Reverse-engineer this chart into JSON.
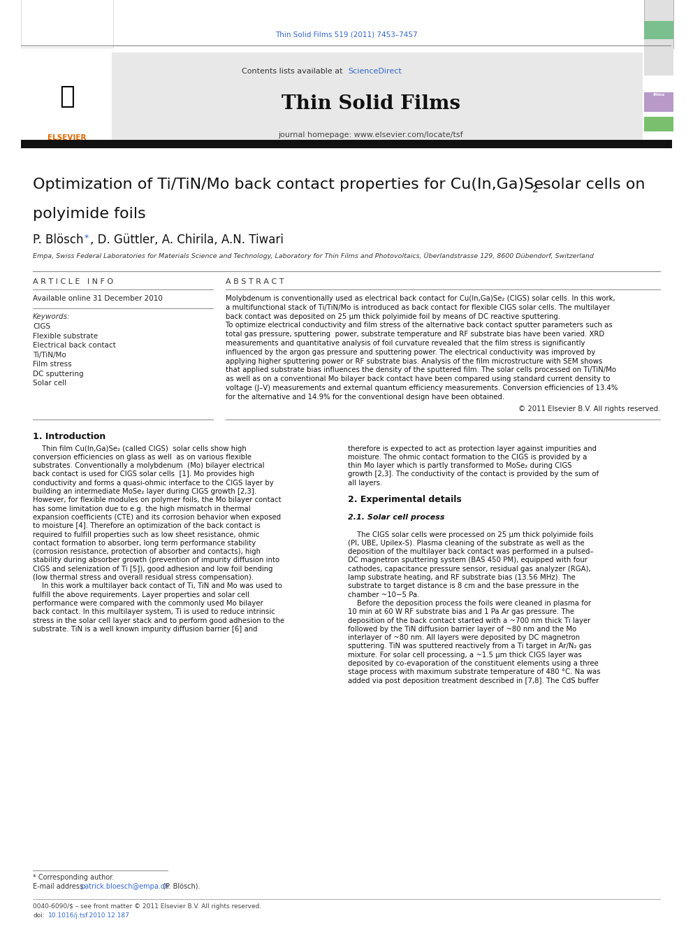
{
  "page_width": 9.92,
  "page_height": 13.23,
  "background_color": "#ffffff",
  "journal_citation": "Thin Solid Films 519 (2011) 7453–7457",
  "journal_citation_color": "#3366cc",
  "header_bg_color": "#e8e8e8",
  "header_text1": "Contents lists available at ",
  "header_sciencedirect": "ScienceDirect",
  "header_sciencedirect_color": "#3366cc",
  "journal_title": "Thin Solid Films",
  "journal_homepage": "journal homepage: www.elsevier.com/locate/tsf",
  "thick_bar_color": "#222222",
  "article_info_header": "A R T I C L E   I N F O",
  "abstract_header": "A B S T R A C T",
  "available_online": "Available online 31 December 2010",
  "keywords_label": "Keywords:",
  "keywords": [
    "CIGS",
    "Flexible substrate",
    "Electrical back contact",
    "Ti/TiN/Mo",
    "Film stress",
    "DC sputtering",
    "Solar cell"
  ],
  "copyright": "© 2011 Elsevier B.V. All rights reserved.",
  "section1_title": "1. Introduction",
  "footnote_star": "* Corresponding author.",
  "footnote_email_label": "E-mail address: ",
  "footnote_email": "patrick.bloesch@empa.ch",
  "footnote_email_color": "#3366cc",
  "footnote_email_end": " (P. Blösch).",
  "footer_line1": "0040-6090/$ – see front matter © 2011 Elsevier B.V. All rights reserved.",
  "footer_doi_color": "#3366cc",
  "abstract_lines": [
    "Molybdenum is conventionally used as electrical back contact for Cu(In,Ga)Se₂ (CIGS) solar cells. In this work,",
    "a multifunctional stack of Ti/TiN/Mo is introduced as back contact for flexible CIGS solar cells. The multilayer",
    "back contact was deposited on 25 μm thick polyimide foil by means of DC reactive sputtering.",
    "To optimize electrical conductivity and film stress of the alternative back contact sputter parameters such as",
    "total gas pressure, sputtering  power, substrate temperature and RF substrate bias have been varied. XRD",
    "measurements and quantitative analysis of foil curvature revealed that the film stress is significantly",
    "influenced by the argon gas pressure and sputtering power. The electrical conductivity was improved by",
    "applying higher sputtering power or RF substrate bias. Analysis of the film microstructure with SEM shows",
    "that applied substrate bias influences the density of the sputtered film. The solar cells processed on Ti/TiN/Mo",
    "as well as on a conventional Mo bilayer back contact have been compared using standard current density to",
    "voltage (J–V) measurements and external quantum efficiency measurements. Conversion efficiencies of 13.4%",
    "for the alternative and 14.9% for the conventional design have been obtained."
  ],
  "intro_col1_lines": [
    "    Thin film Cu(In,Ga)Se₂ (called CIGS)  solar cells show high",
    "conversion efficiencies on glass as well  as on various flexible",
    "substrates. Conventionally a molybdenum  (Mo) bilayer electrical",
    "back contact is used for CIGS solar cells  [1]. Mo provides high",
    "conductivity and forms a quasi-ohmic interface to the CIGS layer by",
    "building an intermediate MoSe₂ layer during CIGS growth [2,3].",
    "However, for flexible modules on polymer foils, the Mo bilayer contact",
    "has some limitation due to e.g. the high mismatch in thermal",
    "expansion coefficients (CTE) and its corrosion behavior when exposed",
    "to moisture [4]. Therefore an optimization of the back contact is",
    "required to fulfill properties such as low sheet resistance, ohmic",
    "contact formation to absorber, long term performance stability",
    "(corrosion resistance, protection of absorber and contacts), high",
    "stability during absorber growth (prevention of impurity diffusion into",
    "CIGS and selenization of Ti [5]), good adhesion and low foil bending",
    "(low thermal stress and overall residual stress compensation).",
    "    In this work a multilayer back contact of Ti, TiN and Mo was used to",
    "fulfill the above requirements. Layer properties and solar cell",
    "performance were compared with the commonly used Mo bilayer",
    "back contact. In this multilayer system, Ti is used to reduce intrinsic",
    "stress in the solar cell layer stack and to perform good adhesion to the",
    "substrate. TiN is a well known impurity diffusion barrier [6] and"
  ],
  "intro_col2_lines": [
    "therefore is expected to act as protection layer against impurities and",
    "moisture. The ohmic contact formation to the CIGS is provided by a",
    "thin Mo layer which is partly transformed to MoSe₂ during CIGS",
    "growth [2,3]. The conductivity of the contact is provided by the sum of",
    "all layers.",
    "",
    "__SECTION__ 2. Experimental details",
    "",
    "__SUBSECTION__ 2.1. Solar cell process",
    "",
    "    The CIGS solar cells were processed on 25 μm thick polyimide foils",
    "(PI, UBE, Upilex-S). Plasma cleaning of the substrate as well as the",
    "deposition of the multilayer back contact was performed in a pulsed–",
    "DC magnetron sputtering system (BAS 450 PM), equipped with four",
    "cathodes, capacitance pressure sensor, residual gas analyzer (RGA),",
    "lamp substrate heating, and RF substrate bias (13.56 MHz). The",
    "substrate to target distance is 8 cm and the base pressure in the",
    "chamber ~10−5 Pa.",
    "    Before the deposition process the foils were cleaned in plasma for",
    "10 min at 60 W RF substrate bias and 1 Pa Ar gas pressure. The",
    "deposition of the back contact started with a ~700 nm thick Ti layer",
    "followed by the TiN diffusion barrier layer of ~80 nm and the Mo",
    "interlayer of ~80 nm. All layers were deposited by DC magnetron",
    "sputtering. TiN was sputtered reactively from a Ti target in Ar/N₂ gas",
    "mixture. For solar cell processing, a ~1.5 μm thick CIGS layer was",
    "deposited by co-evaporation of the constituent elements using a three",
    "stage process with maximum substrate temperature of 480 °C. Na was",
    "added via post deposition treatment described in [7,8]. The CdS buffer"
  ]
}
